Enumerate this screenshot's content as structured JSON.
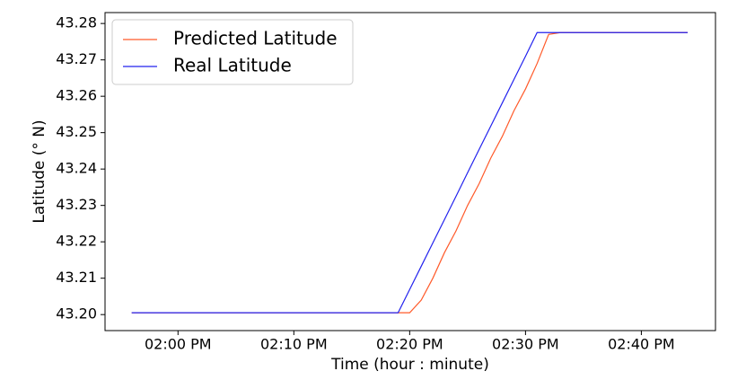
{
  "chart_data": {
    "type": "line",
    "xlabel": "Time (hour : minute)",
    "ylabel": "Latitude (° N)",
    "x": [
      836,
      837,
      838,
      839,
      840,
      841,
      842,
      843,
      844,
      845,
      846,
      847,
      848,
      849,
      850,
      851,
      852,
      853,
      854,
      855,
      856,
      857,
      858,
      859,
      860,
      861,
      862,
      863,
      864,
      865,
      866,
      867,
      868,
      869,
      870,
      871,
      872,
      873,
      874,
      875,
      876,
      877,
      878,
      879,
      880,
      881,
      882,
      883,
      884
    ],
    "series": [
      {
        "name": "Predicted Latitude",
        "color": "#ff5a2a",
        "values": [
          43.2005,
          43.2005,
          43.2005,
          43.2005,
          43.2005,
          43.2005,
          43.2005,
          43.2005,
          43.2005,
          43.2005,
          43.2005,
          43.2005,
          43.2005,
          43.2005,
          43.2005,
          43.2005,
          43.2005,
          43.2005,
          43.2005,
          43.2005,
          43.2005,
          43.2005,
          43.2005,
          43.2005,
          43.2005,
          43.204,
          43.21,
          43.217,
          43.223,
          43.23,
          43.236,
          43.243,
          43.249,
          43.256,
          43.262,
          43.269,
          43.277,
          43.2775,
          43.2775,
          43.2775,
          43.2775,
          43.2775,
          43.2775,
          43.2775,
          43.2775,
          43.2775,
          43.2775,
          43.2775,
          43.2775
        ]
      },
      {
        "name": "Real Latitude",
        "color": "#2222ee",
        "values": [
          43.2005,
          43.2005,
          43.2005,
          43.2005,
          43.2005,
          43.2005,
          43.2005,
          43.2005,
          43.2005,
          43.2005,
          43.2005,
          43.2005,
          43.2005,
          43.2005,
          43.2005,
          43.2005,
          43.2005,
          43.2005,
          43.2005,
          43.2005,
          43.2005,
          43.2005,
          43.2005,
          43.2005,
          43.2069,
          43.2133,
          43.2197,
          43.2261,
          43.2325,
          43.239,
          43.2454,
          43.2518,
          43.2582,
          43.2646,
          43.271,
          43.2775,
          43.2775,
          43.2775,
          43.2775,
          43.2775,
          43.2775,
          43.2775,
          43.2775,
          43.2775,
          43.2775,
          43.2775,
          43.2775,
          43.2775,
          43.2775
        ]
      }
    ],
    "xlim": [
      833.7,
      886.4
    ],
    "xticks": [
      {
        "value": 840,
        "label": "02:00 PM"
      },
      {
        "value": 850,
        "label": "02:10 PM"
      },
      {
        "value": 860,
        "label": "02:20 PM"
      },
      {
        "value": 870,
        "label": "02:30 PM"
      },
      {
        "value": 880,
        "label": "02:40 PM"
      }
    ],
    "ylim": [
      43.1956,
      43.283
    ],
    "yticks": [
      {
        "value": 43.2,
        "label": "43.20"
      },
      43.21,
      43.22,
      43.23,
      43.24,
      43.25,
      43.26,
      43.27,
      43.28
    ],
    "legend": "upper left"
  }
}
